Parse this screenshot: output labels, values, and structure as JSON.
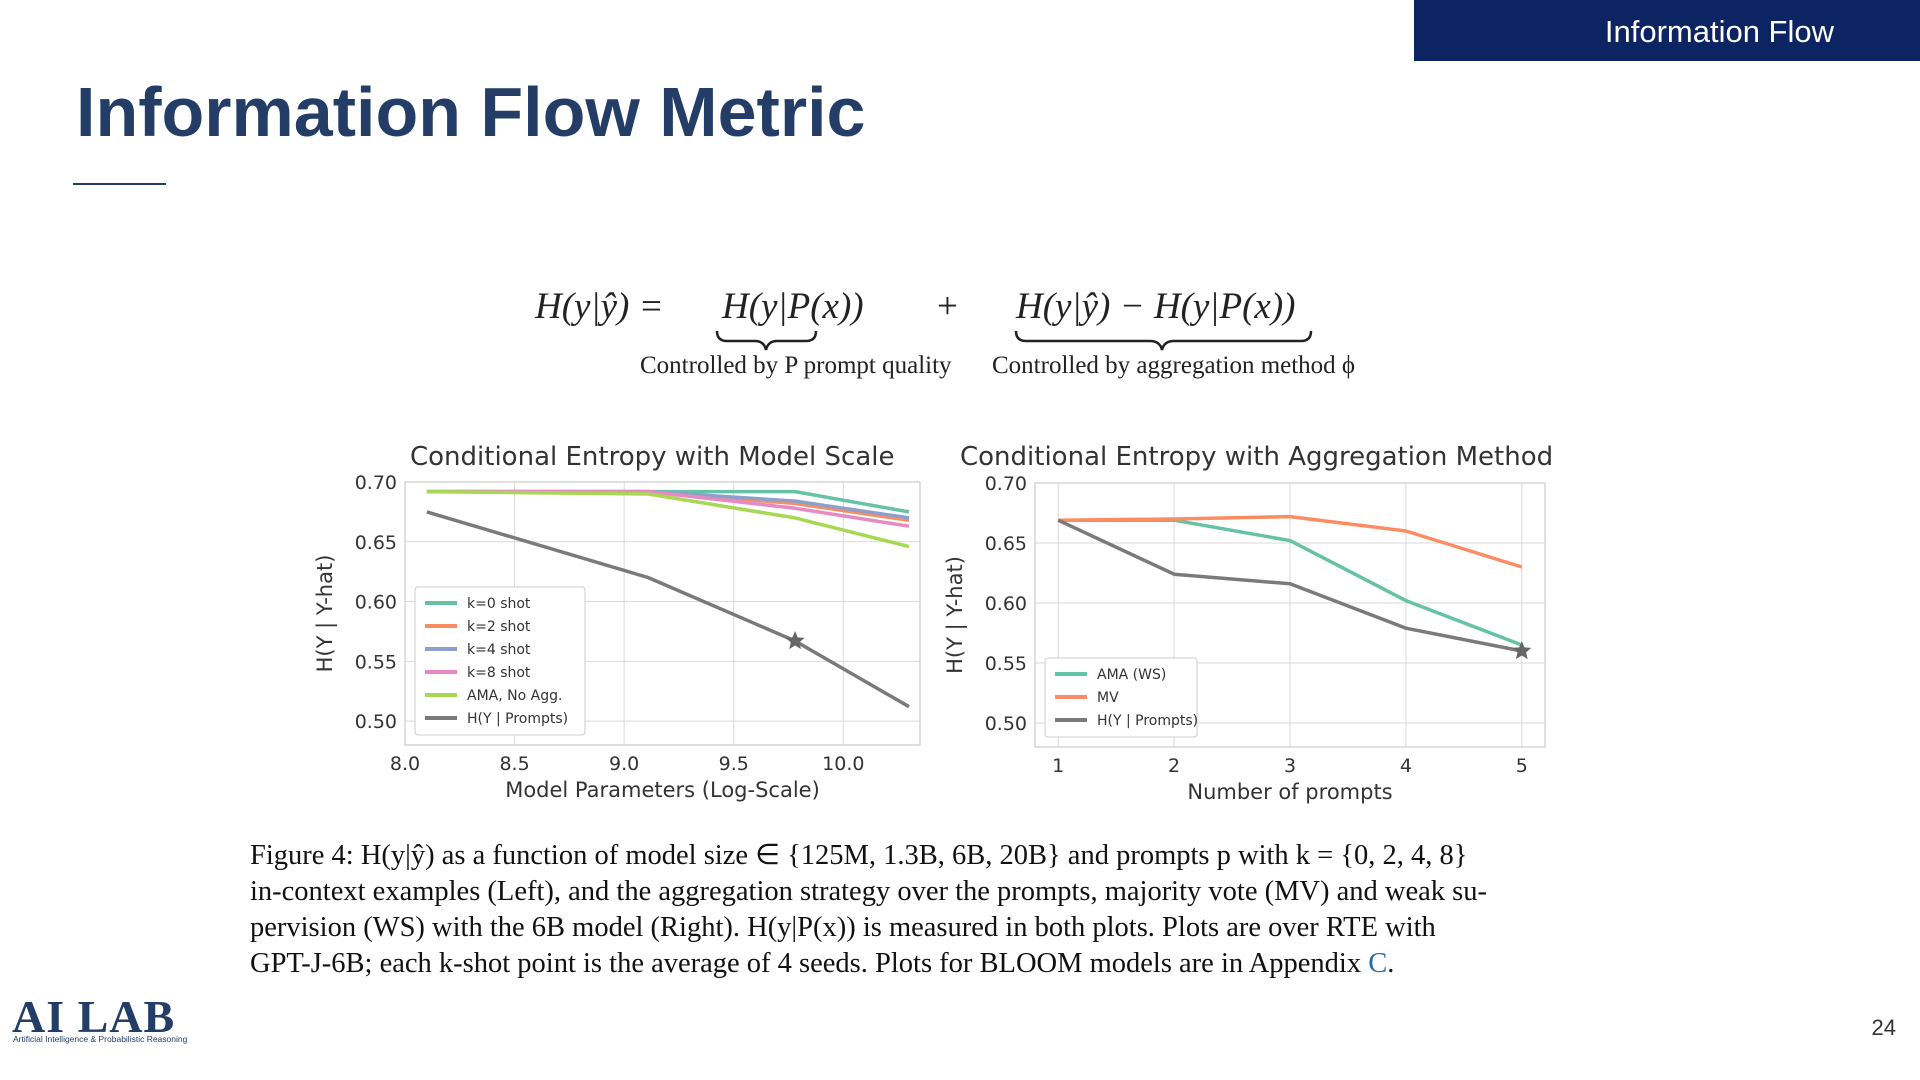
{
  "header": {
    "section": "Information Flow"
  },
  "slide": {
    "title": "Information Flow Metric",
    "page_number": "24"
  },
  "equation": {
    "lhs": "H(y|ŷ) =",
    "term1": "H(y|P(x))",
    "plus": "+",
    "term2": "H(y|ŷ) − H(y|P(x))",
    "label1": "Controlled by P prompt quality",
    "label2": "Controlled by aggregation method ϕ"
  },
  "caption": {
    "line1": "Figure 4: H(y|ŷ) as a function of model size ∈ {125M, 1.3B, 6B, 20B} and prompts p with k = {0, 2, 4, 8}",
    "line2": "in-context examples (Left), and the aggregation strategy over the prompts, majority vote (MV) and weak su-",
    "line3": "pervision (WS) with the 6B model (Right).  H(y|P(x)) is measured in both plots.  Plots are over RTE with",
    "line4": "GPT-J-6B; each k-shot point is the average of 4 seeds. Plots for BLOOM models are in Appendix",
    "link": "C",
    "end": "."
  },
  "logo": {
    "text": "AI LAB",
    "subtitle": "Artificial Intelligence & Probabilistic Reasoning"
  },
  "chart_data": [
    {
      "type": "line",
      "title": "Conditional Entropy with Model Scale",
      "xlabel": "Model Parameters (Log-Scale)",
      "ylabel": "H(Y | Y-hat)",
      "xlim": [
        8.0,
        10.35
      ],
      "ylim": [
        0.48,
        0.7
      ],
      "xticks": [
        "8.0",
        "8.5",
        "9.0",
        "9.5",
        "10.0"
      ],
      "yticks": [
        "0.50",
        "0.55",
        "0.60",
        "0.65",
        "0.70"
      ],
      "grid": true,
      "legend_position": "lower-left",
      "series": [
        {
          "name": "k=0 shot",
          "color": "#66c2a5",
          "x": [
            8.1,
            9.11,
            9.78,
            10.3
          ],
          "y": [
            0.692,
            0.692,
            0.692,
            0.675
          ]
        },
        {
          "name": "k=2 shot",
          "color": "#fc8d62",
          "x": [
            8.1,
            9.11,
            9.78,
            10.3
          ],
          "y": [
            0.692,
            0.692,
            0.682,
            0.668
          ]
        },
        {
          "name": "k=4 shot",
          "color": "#8da0cb",
          "x": [
            8.1,
            9.11,
            9.78,
            10.3
          ],
          "y": [
            0.692,
            0.692,
            0.684,
            0.67
          ]
        },
        {
          "name": "k=8 shot",
          "color": "#e78ac3",
          "x": [
            8.1,
            9.11,
            9.78,
            10.3
          ],
          "y": [
            0.692,
            0.692,
            0.678,
            0.663
          ]
        },
        {
          "name": "AMA, No Agg.",
          "color": "#a6d854",
          "x": [
            8.1,
            9.11,
            9.78,
            10.3
          ],
          "y": [
            0.692,
            0.69,
            0.67,
            0.646
          ]
        },
        {
          "name": "H(Y | Prompts)",
          "color": "#7a7a7a",
          "x": [
            8.1,
            9.11,
            9.78,
            10.3
          ],
          "y": [
            0.675,
            0.62,
            0.567,
            0.512
          ],
          "star_index": 2
        }
      ]
    },
    {
      "type": "line",
      "title": "Conditional Entropy with Aggregation Method",
      "xlabel": "Number of prompts",
      "ylabel": "H(Y | Y-hat)",
      "xlim": [
        0.8,
        5.2
      ],
      "ylim": [
        0.48,
        0.7
      ],
      "xticks": [
        "1",
        "2",
        "3",
        "4",
        "5"
      ],
      "yticks": [
        "0.50",
        "0.55",
        "0.60",
        "0.65",
        "0.70"
      ],
      "grid": true,
      "legend_position": "lower-left",
      "series": [
        {
          "name": "AMA (WS)",
          "color": "#66c2a5",
          "x": [
            1,
            2,
            3,
            4,
            5
          ],
          "y": [
            0.669,
            0.669,
            0.652,
            0.602,
            0.565
          ]
        },
        {
          "name": "MV",
          "color": "#fc8d62",
          "x": [
            1,
            2,
            3,
            4,
            5
          ],
          "y": [
            0.669,
            0.67,
            0.672,
            0.66,
            0.63
          ]
        },
        {
          "name": "H(Y | Prompts)",
          "color": "#7a7a7a",
          "x": [
            1,
            2,
            3,
            4,
            5
          ],
          "y": [
            0.669,
            0.624,
            0.616,
            0.579,
            0.56
          ],
          "star_index": 4
        }
      ]
    }
  ]
}
